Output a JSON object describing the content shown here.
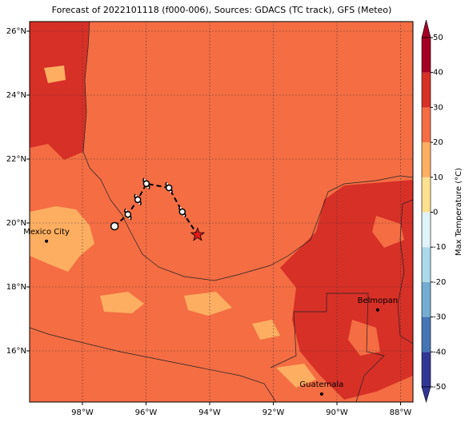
{
  "map": {
    "title": "Forecast of 2022101118 (f000-006), Sources: GDACS (TC track), GFS (Meteo)",
    "lonlim": [
      -99.66,
      -87.61
    ],
    "latlim": [
      14.4,
      26.3
    ],
    "xticks": [
      {
        "value": -98,
        "label": "98°W"
      },
      {
        "value": -96,
        "label": "96°W"
      },
      {
        "value": -94,
        "label": "94°W"
      },
      {
        "value": -92,
        "label": "92°W"
      },
      {
        "value": -90,
        "label": "90°W"
      },
      {
        "value": -88,
        "label": "88°W"
      }
    ],
    "yticks": [
      {
        "value": 16,
        "label": "16°N"
      },
      {
        "value": 18,
        "label": "18°N"
      },
      {
        "value": 20,
        "label": "20°N"
      },
      {
        "value": 22,
        "label": "22°N"
      },
      {
        "value": 24,
        "label": "24°N"
      },
      {
        "value": 26,
        "label": "26°N"
      }
    ],
    "grid": true,
    "track": {
      "lon": [
        -96.99,
        -96.57,
        -96.26,
        -95.99,
        -95.28,
        -94.86,
        -94.38
      ],
      "lat": [
        19.9,
        20.27,
        20.73,
        21.23,
        21.1,
        20.35,
        19.63
      ]
    },
    "cities": [
      {
        "name": "Mexico City",
        "lon": -99.13,
        "lat": 19.43
      },
      {
        "name": "Belmopan",
        "lon": -88.72,
        "lat": 17.28
      },
      {
        "name": "Guatemala",
        "lon": -90.48,
        "lat": 14.65
      }
    ]
  },
  "colorbar": {
    "label": "Max Temperature (°C)",
    "lim": [
      -50,
      50
    ],
    "ticks": [
      -50,
      -40,
      -30,
      -20,
      -10,
      0,
      10,
      20,
      30,
      40,
      50
    ],
    "colors": [
      "#313695",
      "#4575b4",
      "#74add1",
      "#abd9e9",
      "#e0f3f8",
      "#fee090",
      "#fdae61",
      "#f46d43",
      "#d73027",
      "#a50026"
    ]
  }
}
